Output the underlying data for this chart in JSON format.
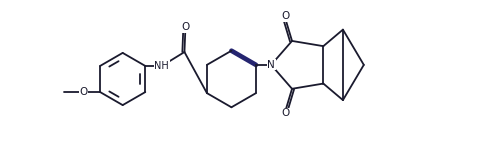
{
  "figsize": [
    4.89,
    1.58
  ],
  "dpi": 100,
  "bg": "#ffffff",
  "lc": "#1a1a2e",
  "lw": 1.3,
  "fs": 7.5,
  "xlim": [
    -0.5,
    9.5
  ],
  "ylim": [
    -1.8,
    1.8
  ]
}
